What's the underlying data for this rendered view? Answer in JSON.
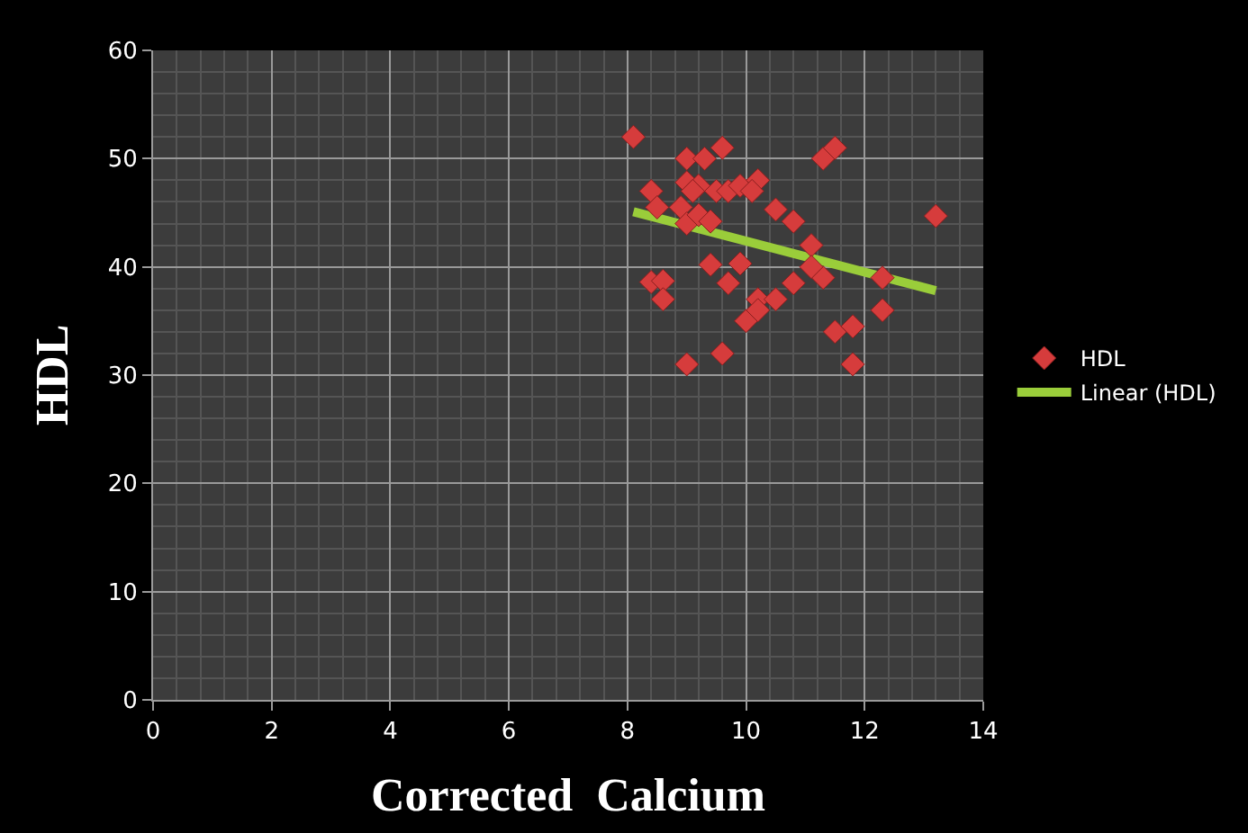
{
  "chart_data": {
    "type": "scatter",
    "xlabel": "Corrected  Calcium",
    "ylabel": "HDL",
    "xlim": [
      0,
      14
    ],
    "xticks": [
      0,
      2,
      4,
      6,
      8,
      10,
      12,
      14
    ],
    "ylim": [
      0,
      60
    ],
    "yticks": [
      0,
      10,
      20,
      30,
      40,
      50,
      60
    ],
    "grid": true,
    "legend": "right",
    "marker": "diamond",
    "series": [
      {
        "name": "HDL",
        "color": "#d63c3c",
        "x": [
          8.1,
          8.4,
          8.5,
          8.9,
          9.0,
          9.3,
          9.6,
          9.0,
          9.2,
          9.1,
          9.5,
          9.7,
          9.9,
          10.2,
          10.1,
          10.5,
          10.8,
          9.0,
          9.2,
          9.4,
          11.1,
          11.3,
          11.5,
          13.2,
          9.4,
          9.9,
          9.7,
          10.2,
          10.5,
          10.8,
          11.3,
          11.1,
          12.3,
          8.4,
          8.6,
          8.6,
          10.0,
          10.2,
          11.5,
          11.8,
          12.3,
          9.0,
          9.6,
          11.8
        ],
        "values": [
          52,
          47,
          45.5,
          45.5,
          50,
          50,
          51,
          47.8,
          47.5,
          47,
          47,
          47,
          47.5,
          48,
          47,
          45.3,
          44.2,
          44,
          44.8,
          44.2,
          42,
          50,
          51,
          44.7,
          40.2,
          40.3,
          38.5,
          37,
          37,
          38.5,
          39,
          40,
          39,
          38.6,
          38.7,
          37,
          35,
          36,
          34,
          34.5,
          36,
          31,
          32,
          31
        ]
      },
      {
        "name": "Linear (HDL)",
        "type": "line",
        "color": "#9acd3a",
        "marker": "none",
        "x": [
          8.1,
          13.2
        ],
        "values": [
          45.1,
          37.8
        ]
      }
    ]
  }
}
